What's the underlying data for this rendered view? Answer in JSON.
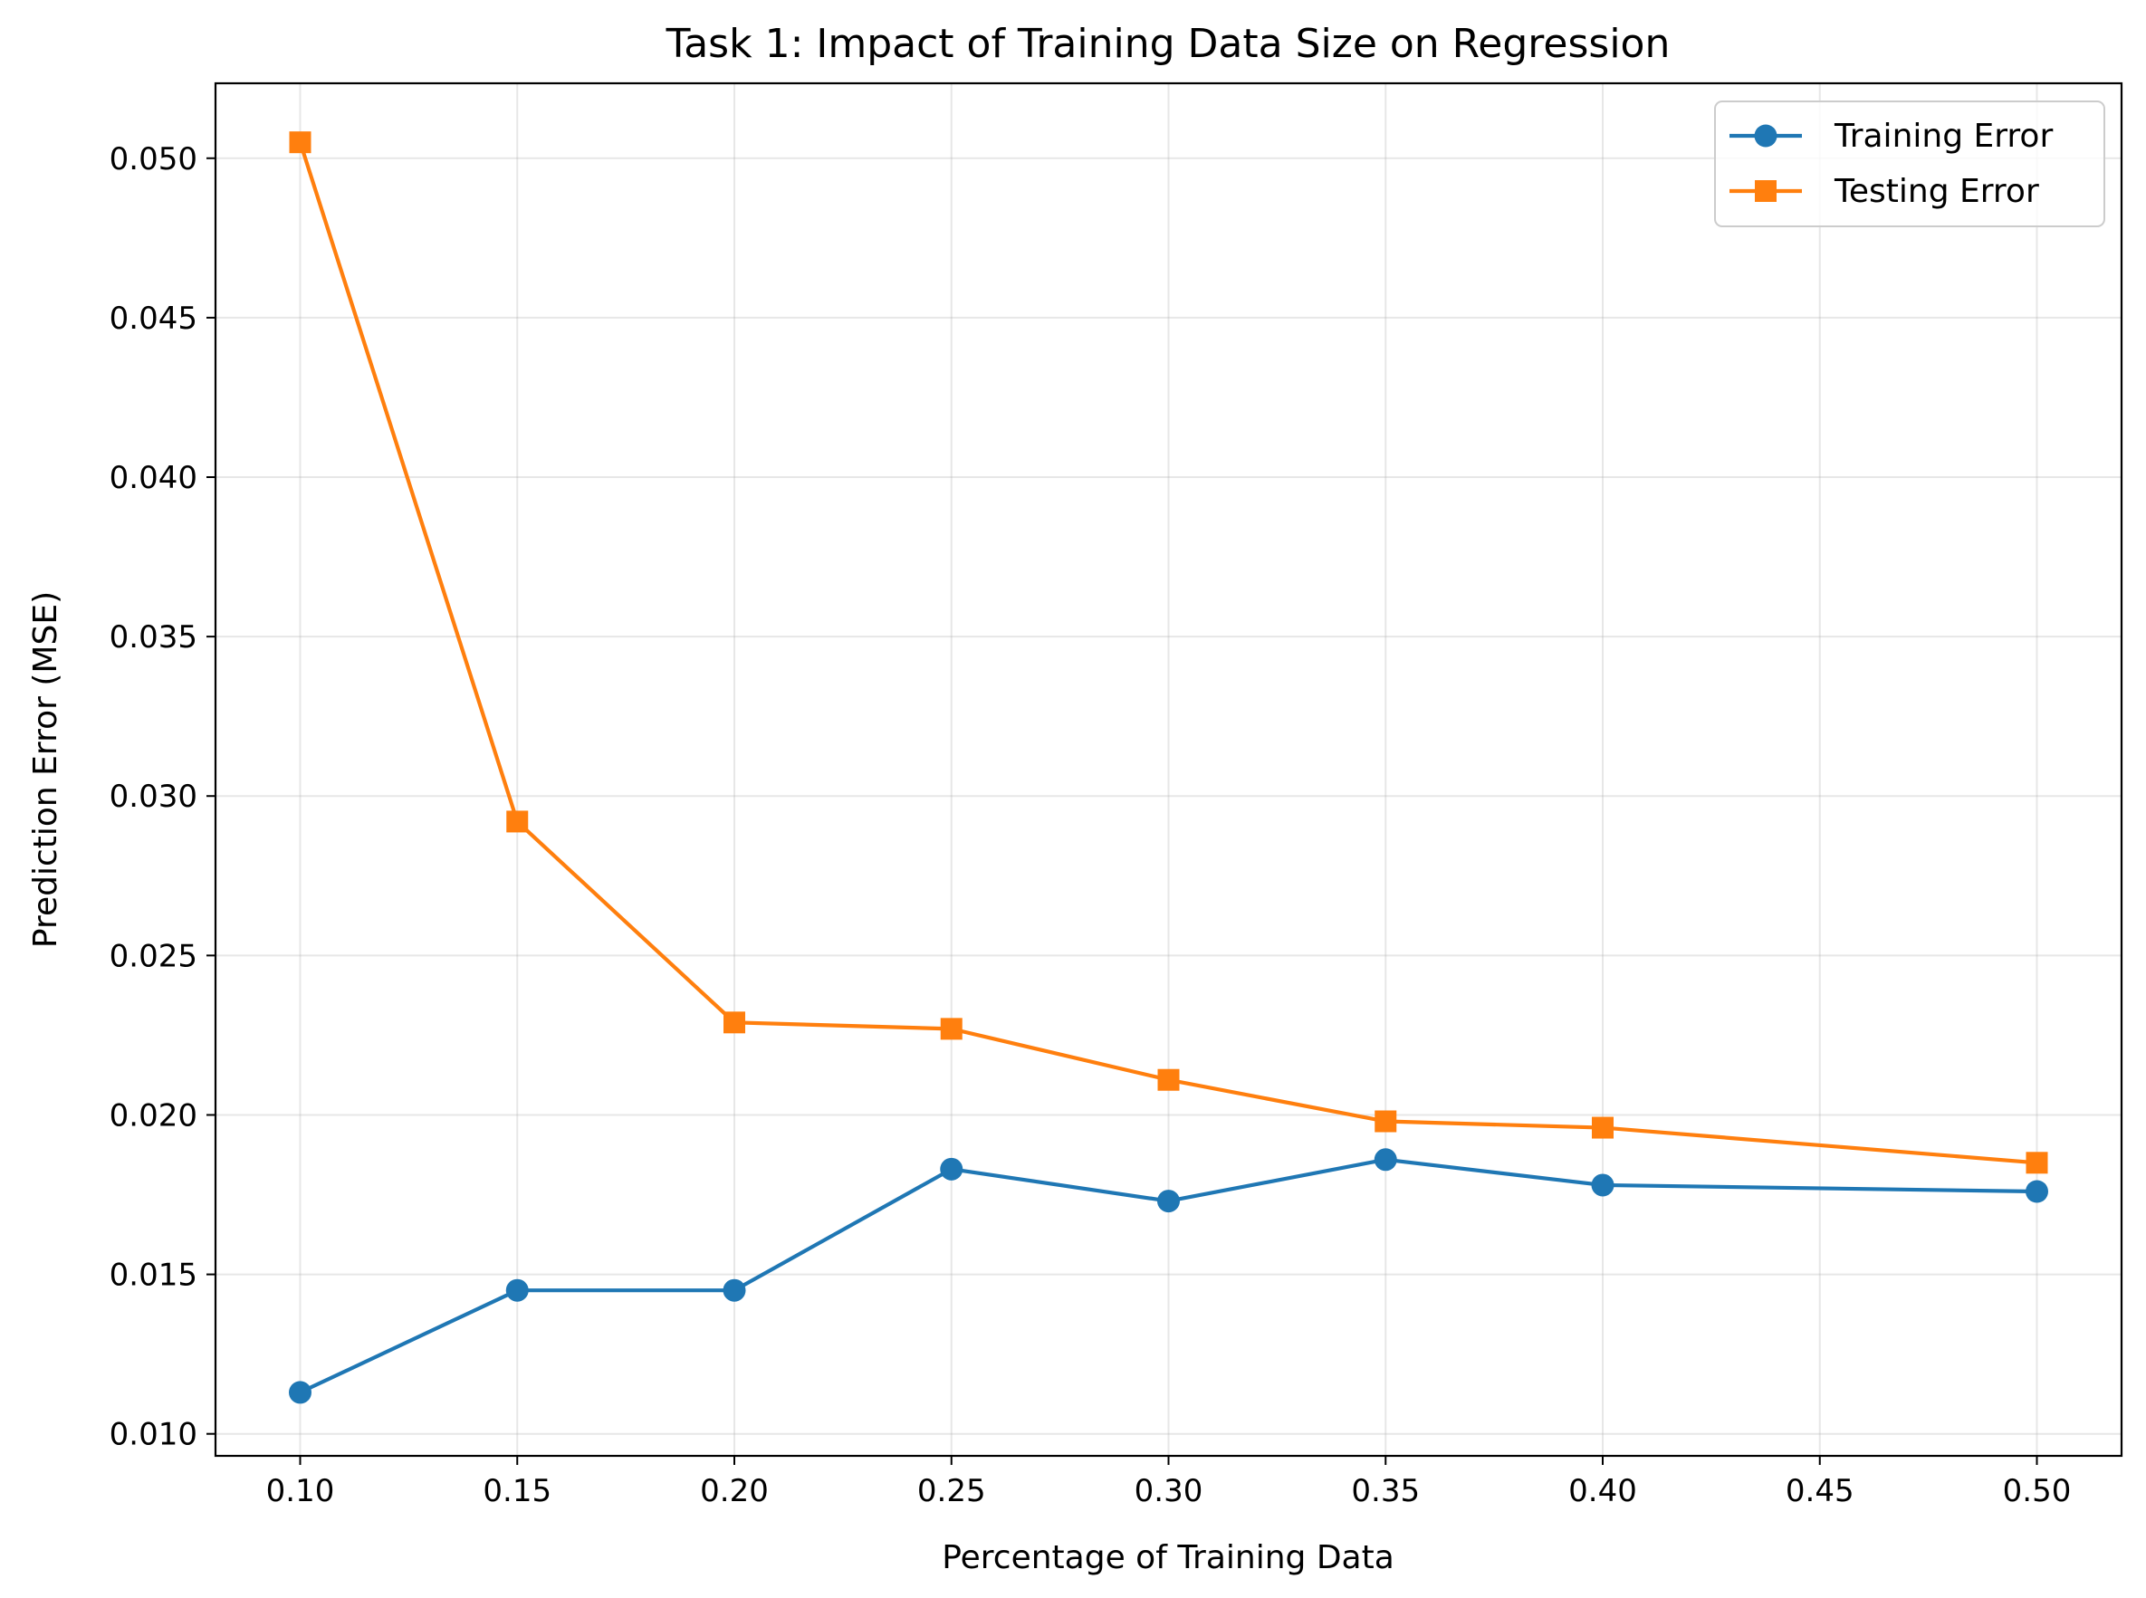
{
  "chart_data": {
    "type": "line",
    "title": "Task 1: Impact of Training Data Size on Regression",
    "xlabel": "Percentage of Training Data",
    "ylabel": "Prediction Error (MSE)",
    "xlim": [
      0.0805,
      0.5195
    ],
    "ylim": [
      0.00931,
      0.05235
    ],
    "xticks": [
      0.1,
      0.15,
      0.2,
      0.25,
      0.3,
      0.35,
      0.4,
      0.45,
      0.5
    ],
    "xtick_labels": [
      "0.10",
      "0.15",
      "0.20",
      "0.25",
      "0.30",
      "0.35",
      "0.40",
      "0.45",
      "0.50"
    ],
    "yticks": [
      0.01,
      0.015,
      0.02,
      0.025,
      0.03,
      0.035,
      0.04,
      0.045,
      0.05
    ],
    "ytick_labels": [
      "0.010",
      "0.015",
      "0.020",
      "0.025",
      "0.030",
      "0.035",
      "0.040",
      "0.045",
      "0.050"
    ],
    "grid": true,
    "legend_position": "top-right",
    "series": [
      {
        "name": "Training Error",
        "color": "#1f77b4",
        "marker": "circle",
        "x": [
          0.1,
          0.15,
          0.2,
          0.25,
          0.3,
          0.35,
          0.4,
          0.5
        ],
        "y": [
          0.0113,
          0.0145,
          0.0145,
          0.0183,
          0.0173,
          0.0186,
          0.0178,
          0.0176
        ]
      },
      {
        "name": "Testing Error",
        "color": "#ff7f0e",
        "marker": "square",
        "x": [
          0.1,
          0.15,
          0.2,
          0.25,
          0.3,
          0.35,
          0.4,
          0.5
        ],
        "y": [
          0.0505,
          0.0292,
          0.0229,
          0.0227,
          0.0211,
          0.0198,
          0.0196,
          0.0185
        ]
      }
    ]
  }
}
